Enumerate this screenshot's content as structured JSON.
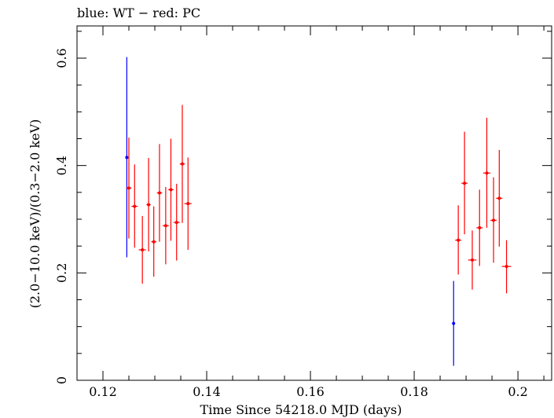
{
  "chart_data": {
    "type": "scatter",
    "title": "blue: WT − red: PC",
    "xlabel": "Time Since 54218.0 MJD (days)",
    "ylabel": "(2.0−10.0 keV)/(0.3−2.0 keV)",
    "xlim": [
      0.115,
      0.2065
    ],
    "ylim": [
      0,
      0.66
    ],
    "x_ticks": [
      {
        "value": 0.12,
        "label": "0.12"
      },
      {
        "value": 0.14,
        "label": "0.14"
      },
      {
        "value": 0.16,
        "label": "0.16"
      },
      {
        "value": 0.18,
        "label": "0.18"
      },
      {
        "value": 0.2,
        "label": "0.2"
      }
    ],
    "y_ticks": [
      {
        "value": 0,
        "label": "0"
      },
      {
        "value": 0.2,
        "label": "0.2"
      },
      {
        "value": 0.4,
        "label": "0.4"
      },
      {
        "value": 0.6,
        "label": "0.6"
      }
    ],
    "grid": false,
    "series": [
      {
        "name": "WT",
        "color": "#0000ff",
        "points": [
          {
            "x": 0.1246,
            "xerr": 0.0,
            "y": 0.415,
            "ylo": 0.229,
            "yhi": 0.602
          },
          {
            "x": 0.1876,
            "xerr": 0.0,
            "y": 0.106,
            "ylo": 0.027,
            "yhi": 0.185
          }
        ]
      },
      {
        "name": "PC",
        "color": "#ff0000",
        "points": [
          {
            "x": 0.125,
            "xerr": 0.0005,
            "y": 0.358,
            "ylo": 0.264,
            "yhi": 0.452
          },
          {
            "x": 0.1261,
            "xerr": 0.0006,
            "y": 0.324,
            "ylo": 0.247,
            "yhi": 0.402
          },
          {
            "x": 0.1276,
            "xerr": 0.0007,
            "y": 0.243,
            "ylo": 0.18,
            "yhi": 0.306
          },
          {
            "x": 0.1288,
            "xerr": 0.0004,
            "y": 0.327,
            "ylo": 0.24,
            "yhi": 0.414
          },
          {
            "x": 0.1298,
            "xerr": 0.0005,
            "y": 0.258,
            "ylo": 0.193,
            "yhi": 0.324
          },
          {
            "x": 0.1309,
            "xerr": 0.0005,
            "y": 0.349,
            "ylo": 0.258,
            "yhi": 0.44
          },
          {
            "x": 0.1321,
            "xerr": 0.0006,
            "y": 0.288,
            "ylo": 0.216,
            "yhi": 0.36
          },
          {
            "x": 0.1331,
            "xerr": 0.0005,
            "y": 0.355,
            "ylo": 0.26,
            "yhi": 0.45
          },
          {
            "x": 0.1342,
            "xerr": 0.0006,
            "y": 0.294,
            "ylo": 0.223,
            "yhi": 0.366
          },
          {
            "x": 0.1353,
            "xerr": 0.0005,
            "y": 0.403,
            "ylo": 0.293,
            "yhi": 0.513
          },
          {
            "x": 0.1364,
            "xerr": 0.0007,
            "y": 0.329,
            "ylo": 0.243,
            "yhi": 0.415
          },
          {
            "x": 0.1885,
            "xerr": 0.0006,
            "y": 0.261,
            "ylo": 0.197,
            "yhi": 0.326
          },
          {
            "x": 0.1897,
            "xerr": 0.0006,
            "y": 0.367,
            "ylo": 0.272,
            "yhi": 0.463
          },
          {
            "x": 0.1912,
            "xerr": 0.0008,
            "y": 0.224,
            "ylo": 0.169,
            "yhi": 0.279
          },
          {
            "x": 0.1926,
            "xerr": 0.0006,
            "y": 0.284,
            "ylo": 0.213,
            "yhi": 0.355
          },
          {
            "x": 0.194,
            "xerr": 0.0007,
            "y": 0.386,
            "ylo": 0.284,
            "yhi": 0.489
          },
          {
            "x": 0.1953,
            "xerr": 0.0006,
            "y": 0.298,
            "ylo": 0.219,
            "yhi": 0.378
          },
          {
            "x": 0.1964,
            "xerr": 0.0006,
            "y": 0.339,
            "ylo": 0.249,
            "yhi": 0.429
          },
          {
            "x": 0.1978,
            "xerr": 0.0009,
            "y": 0.212,
            "ylo": 0.162,
            "yhi": 0.261
          }
        ]
      }
    ]
  }
}
